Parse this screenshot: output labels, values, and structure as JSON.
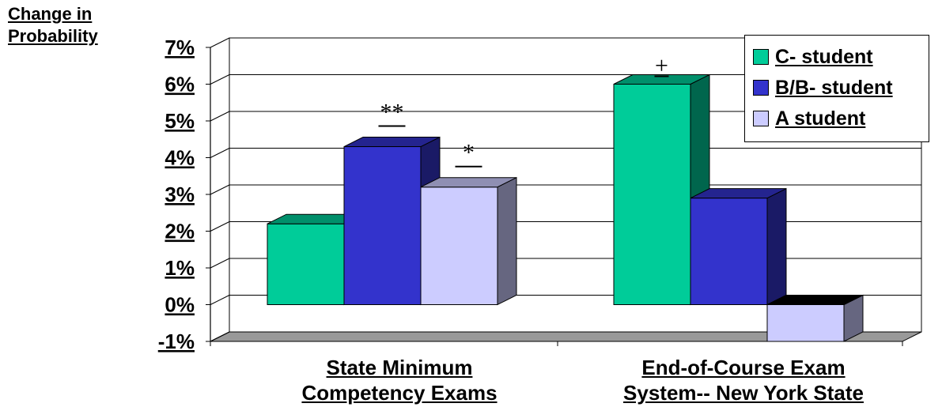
{
  "chart_data": {
    "type": "bar",
    "ylabel_lines": [
      "Change in",
      "Probability"
    ],
    "xlabel": "",
    "categories": [
      [
        "State Minimum",
        "Competency Exams"
      ],
      [
        "End-of-Course Exam",
        "System-- New York State"
      ]
    ],
    "yticks": [
      "7%",
      "6%",
      "5%",
      "4%",
      "3%",
      "2%",
      "1%",
      "0%",
      "-1%"
    ],
    "ylim": [
      -1,
      7
    ],
    "grid": true,
    "legend_position": "top-right",
    "series": [
      {
        "name": "C- student",
        "values": [
          2.2,
          6.0
        ],
        "color": "#00cc99",
        "annotations": [
          "",
          "+"
        ]
      },
      {
        "name": "B/B- student",
        "values": [
          4.3,
          2.9
        ],
        "color": "#3333cc",
        "annotations": [
          "**",
          ""
        ]
      },
      {
        "name": "A student",
        "values": [
          3.2,
          -1.0
        ],
        "color": "#ccccff",
        "annotations": [
          "*",
          ""
        ]
      }
    ]
  }
}
